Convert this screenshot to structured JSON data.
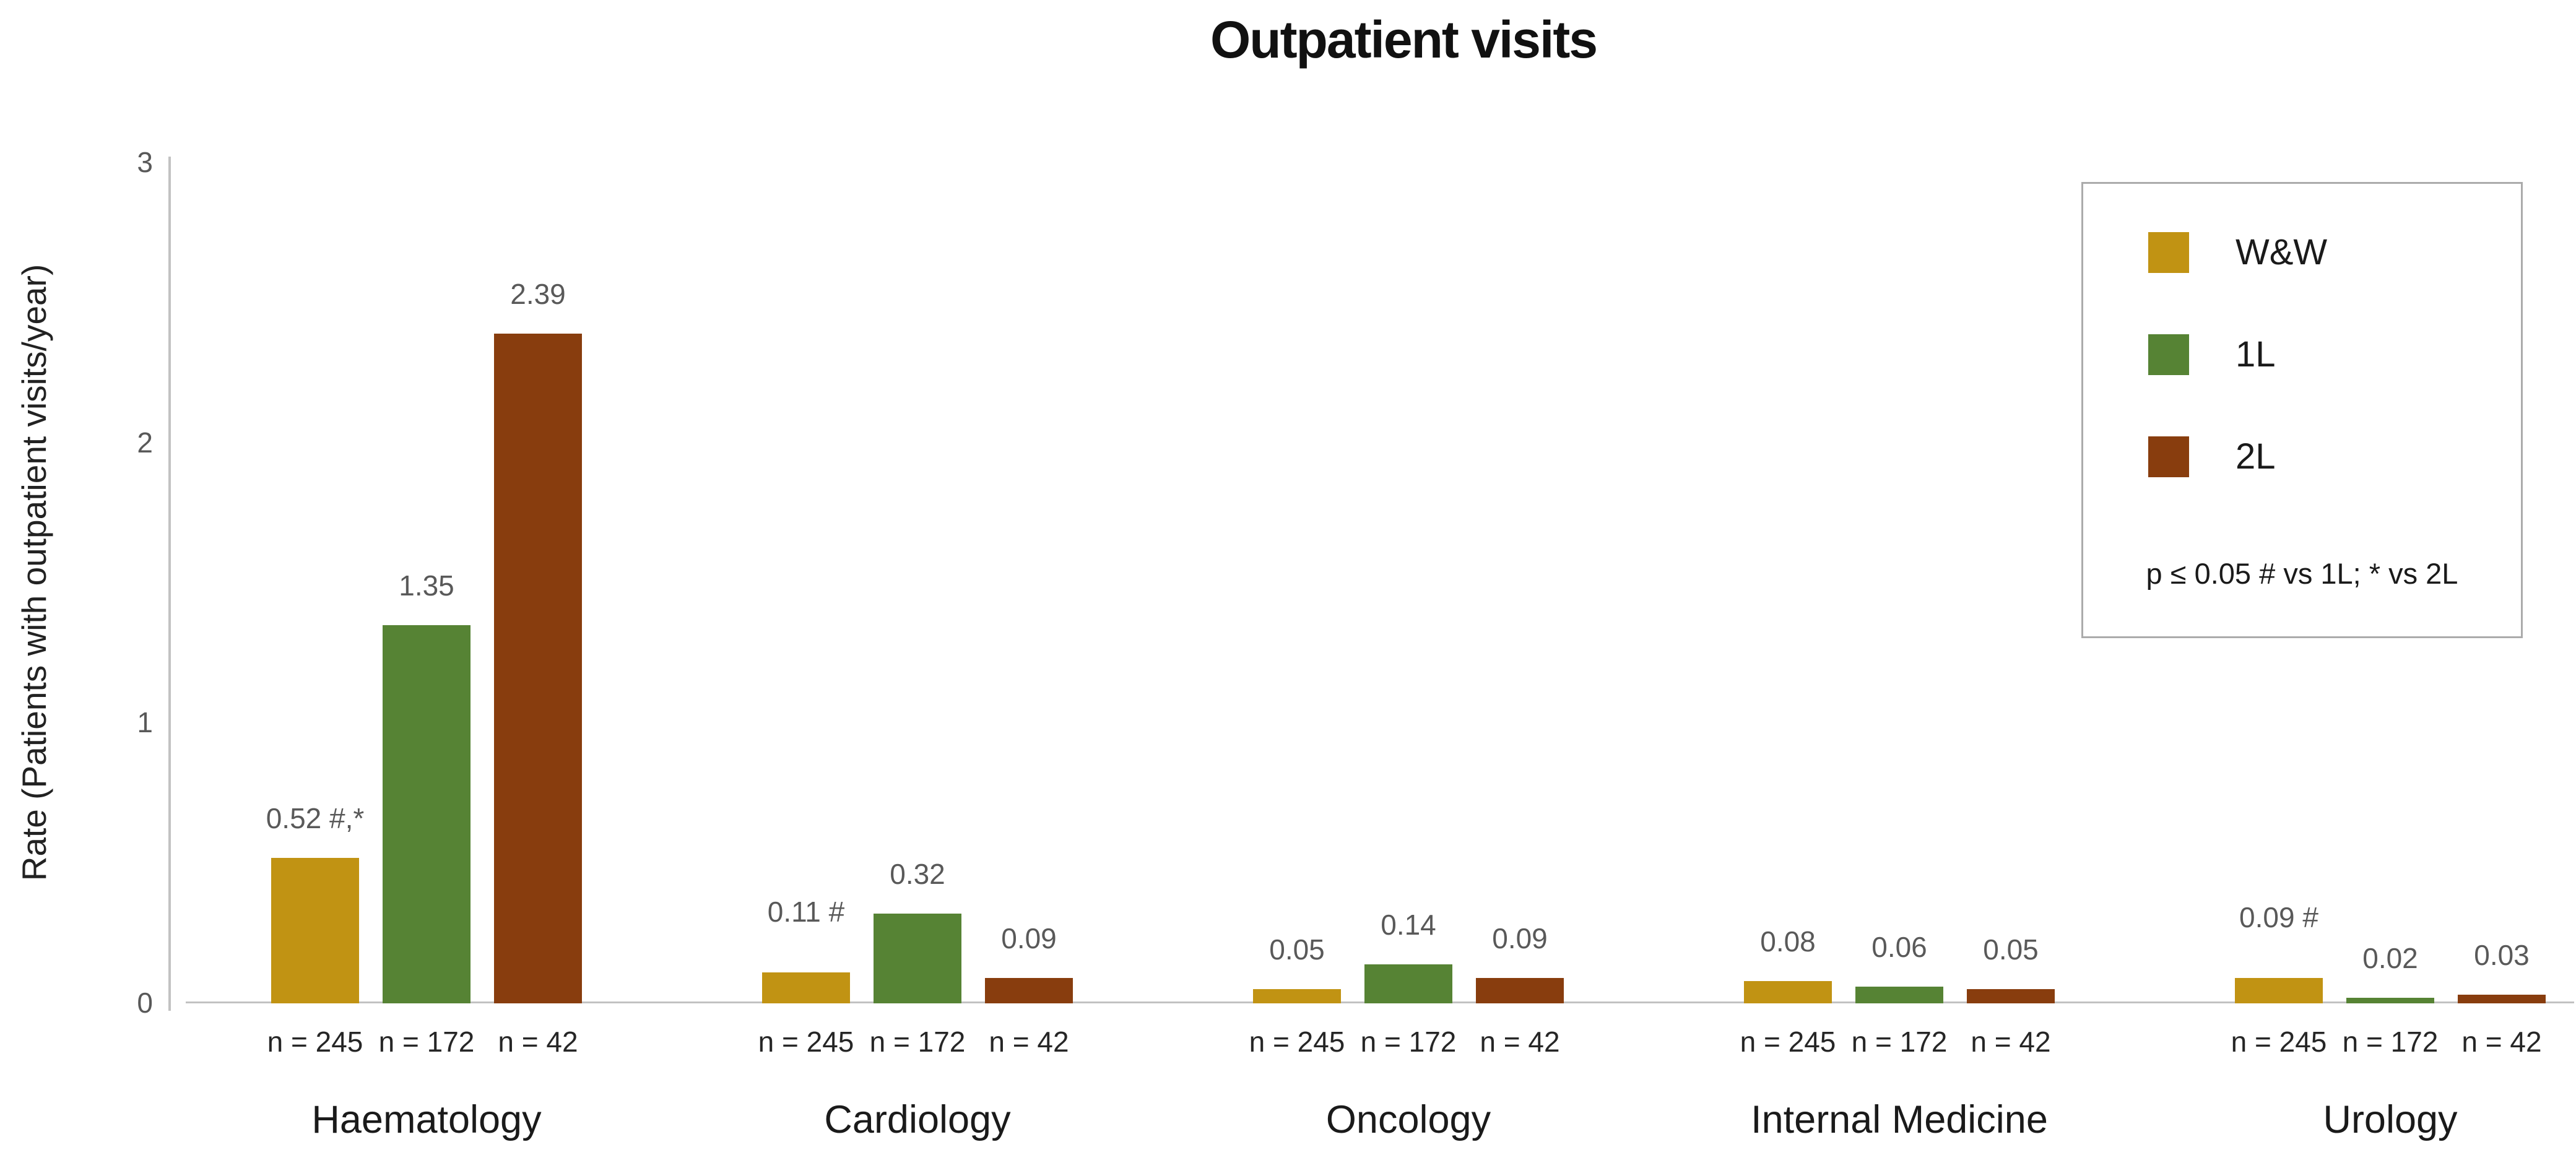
{
  "chart_data": {
    "type": "bar",
    "title": "Outpatient visits",
    "ylabel": "Rate (Patients with outpatient visits/year)",
    "xlabel": "",
    "ylim": [
      0,
      3
    ],
    "yticks": [
      0,
      1,
      2,
      3
    ],
    "grid": false,
    "legend_position": "top-right",
    "categories": [
      "Haematology",
      "Cardiology",
      "Oncology",
      "Internal Medicine",
      "Urology"
    ],
    "group_n_labels": [
      "n = 245",
      "n = 172",
      "n = 42"
    ],
    "series": [
      {
        "name": "W&W",
        "color": "#C19313",
        "values": [
          0.52,
          0.11,
          0.05,
          0.08,
          0.09
        ],
        "bar_labels": [
          "0.52 #,*",
          "0.11 #",
          "0.05",
          "0.08",
          "0.09 #"
        ]
      },
      {
        "name": "1L",
        "color": "#568334",
        "values": [
          1.35,
          0.32,
          0.14,
          0.06,
          0.02
        ],
        "bar_labels": [
          "1.35",
          "0.32",
          "0.14",
          "0.06",
          "0.02"
        ]
      },
      {
        "name": "2L",
        "color": "#883D0E",
        "values": [
          2.39,
          0.09,
          0.09,
          0.05,
          0.03
        ],
        "bar_labels": [
          "2.39",
          "0.09",
          "0.09",
          "0.05",
          "0.03"
        ]
      }
    ],
    "legend_note": "p ≤ 0.05 # vs 1L; * vs 2L",
    "axis_line_color": "#C2C2C2",
    "tick_label_color": "#595959",
    "value_label_color": "#595959",
    "text_color": "#1a1a1a"
  }
}
